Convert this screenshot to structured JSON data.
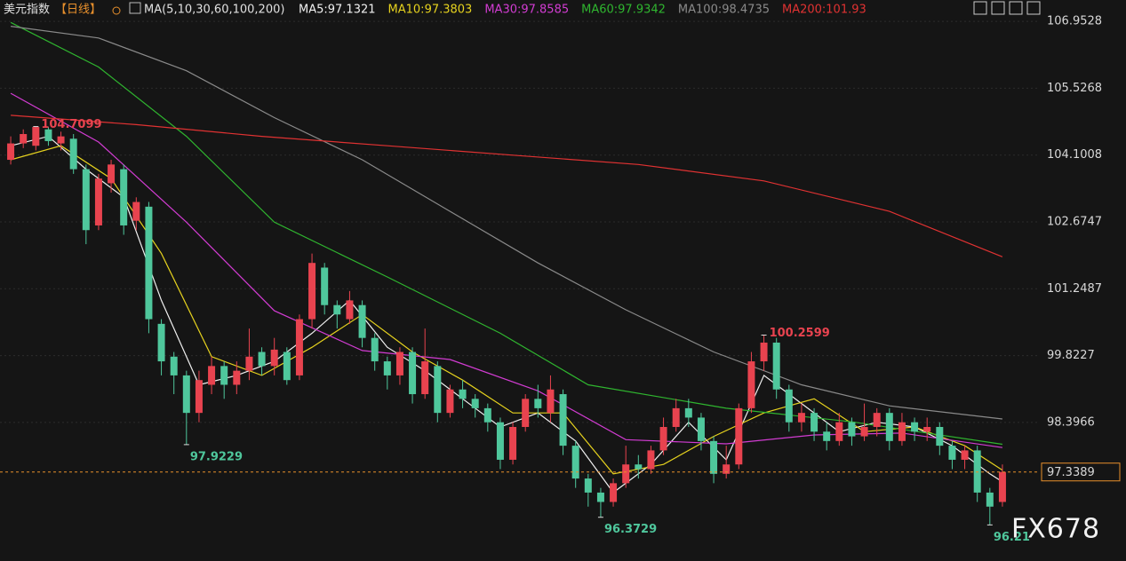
{
  "chart_data": {
    "type": "candlestick",
    "title": "美元指数",
    "period": "【日线】",
    "ma_label": "MA(5,10,30,60,100,200)",
    "watermark": "FX678",
    "ylim": [
      95.44,
      107.41
    ],
    "yticks": [
      98.3966,
      99.8227,
      101.2487,
      102.6747,
      104.1008,
      105.5268,
      106.9528
    ],
    "grid": true,
    "up_color": "#e8434f",
    "down_color": "#4fc79c",
    "current_price": 97.3389,
    "current_color": "#e8902c",
    "open": [
      104.0,
      104.35,
      104.3,
      104.65,
      104.35,
      104.45,
      103.8,
      102.6,
      103.5,
      103.8,
      102.7,
      103.0,
      100.5,
      99.8,
      99.4,
      98.6,
      99.2,
      99.6,
      99.2,
      99.5,
      99.9,
      99.6,
      99.9,
      99.4,
      100.6,
      101.7,
      100.9,
      100.6,
      100.9,
      100.2,
      99.7,
      99.4,
      99.9,
      99.0,
      99.6,
      98.6,
      99.1,
      98.9,
      98.7,
      98.4,
      97.6,
      98.3,
      98.9,
      98.6,
      99.0,
      97.9,
      97.2,
      96.9,
      96.7,
      97.1,
      97.5,
      97.4,
      97.8,
      98.3,
      98.7,
      98.5,
      98.0,
      97.3,
      97.5,
      98.7,
      99.7,
      100.1,
      99.1,
      98.4,
      98.6,
      98.2,
      98.0,
      98.4,
      98.1,
      98.3,
      98.6,
      98.0,
      98.4,
      98.2,
      98.3,
      97.9,
      97.6,
      97.8,
      96.9,
      96.7
    ],
    "high": [
      104.5,
      104.65,
      104.71,
      104.7,
      104.6,
      104.55,
      103.9,
      103.7,
      104.0,
      103.9,
      103.2,
      103.1,
      100.6,
      99.9,
      99.5,
      99.5,
      99.8,
      99.7,
      99.7,
      100.4,
      100.0,
      100.2,
      100.0,
      100.7,
      102.0,
      101.8,
      101.0,
      101.2,
      101.0,
      100.3,
      99.8,
      100.0,
      100.0,
      100.4,
      99.7,
      99.2,
      99.3,
      99.0,
      98.8,
      98.5,
      98.4,
      99.0,
      99.2,
      99.4,
      99.1,
      98.0,
      97.3,
      97.0,
      97.2,
      97.9,
      97.7,
      97.9,
      98.5,
      98.9,
      98.9,
      98.6,
      98.1,
      97.9,
      98.8,
      99.9,
      100.26,
      100.2,
      99.2,
      98.8,
      98.7,
      98.4,
      98.6,
      98.5,
      98.8,
      98.7,
      98.7,
      98.6,
      98.5,
      98.5,
      98.4,
      98.0,
      97.9,
      97.9,
      97.0,
      97.5
    ],
    "low": [
      103.9,
      104.25,
      104.2,
      104.3,
      104.2,
      103.7,
      102.2,
      102.5,
      103.3,
      102.4,
      102.5,
      100.3,
      99.4,
      99.0,
      97.92,
      98.4,
      99.0,
      98.9,
      99.0,
      99.3,
      99.4,
      99.4,
      99.2,
      99.3,
      100.4,
      100.7,
      100.4,
      100.5,
      100.0,
      99.5,
      99.1,
      99.2,
      98.8,
      98.9,
      98.4,
      98.5,
      98.7,
      98.5,
      98.2,
      97.4,
      97.5,
      98.2,
      98.5,
      98.4,
      97.7,
      97.0,
      96.6,
      96.37,
      96.6,
      97.0,
      97.2,
      97.3,
      97.7,
      98.2,
      98.3,
      97.8,
      97.1,
      97.2,
      97.4,
      98.6,
      99.5,
      98.9,
      98.2,
      98.2,
      98.0,
      97.8,
      97.9,
      97.9,
      98.0,
      98.1,
      97.8,
      97.9,
      98.0,
      98.0,
      97.7,
      97.4,
      97.4,
      96.7,
      96.21,
      96.6
    ],
    "close": [
      104.35,
      104.55,
      104.7,
      104.4,
      104.5,
      103.8,
      102.5,
      103.6,
      103.9,
      102.6,
      103.1,
      100.6,
      99.7,
      99.4,
      98.6,
      99.3,
      99.6,
      99.2,
      99.5,
      99.8,
      99.6,
      99.95,
      99.3,
      100.6,
      101.8,
      100.9,
      100.7,
      101.0,
      100.2,
      99.7,
      99.4,
      99.9,
      99.0,
      99.7,
      98.6,
      99.1,
      98.9,
      98.7,
      98.4,
      97.6,
      98.3,
      98.9,
      98.7,
      99.1,
      97.9,
      97.2,
      96.9,
      96.7,
      97.1,
      97.5,
      97.4,
      97.8,
      98.3,
      98.7,
      98.5,
      98.0,
      97.3,
      97.5,
      98.7,
      99.7,
      100.1,
      99.1,
      98.4,
      98.6,
      98.2,
      98.0,
      98.4,
      98.1,
      98.3,
      98.6,
      98.0,
      98.4,
      98.2,
      98.3,
      97.9,
      97.6,
      97.8,
      96.9,
      96.6,
      97.34
    ],
    "series": [
      {
        "name": "MA5:97.1321",
        "color": "#f0f0f0",
        "x": [
          0,
          3,
          6,
          9,
          12,
          15,
          18,
          21,
          24,
          27,
          30,
          33,
          36,
          39,
          42,
          45,
          48,
          51,
          54,
          57,
          60,
          63,
          66,
          69,
          72,
          75,
          78,
          79
        ],
        "values": [
          104.3,
          104.5,
          103.8,
          103.2,
          101.0,
          99.2,
          99.4,
          99.7,
          100.3,
          101.0,
          100.0,
          99.5,
          98.9,
          98.3,
          98.6,
          98.0,
          96.9,
          97.5,
          98.4,
          97.6,
          99.4,
          98.8,
          98.2,
          98.4,
          98.3,
          97.9,
          97.3,
          97.13
        ]
      },
      {
        "name": "MA10:97.3803",
        "color": "#e6d21e",
        "x": [
          0,
          4,
          8,
          12,
          16,
          20,
          24,
          28,
          32,
          36,
          40,
          44,
          48,
          52,
          56,
          60,
          64,
          68,
          72,
          76,
          79
        ],
        "values": [
          104.0,
          104.3,
          103.6,
          102.0,
          99.8,
          99.4,
          100.0,
          100.7,
          99.9,
          99.3,
          98.6,
          98.6,
          97.3,
          97.5,
          98.1,
          98.6,
          98.9,
          98.2,
          98.3,
          97.9,
          97.38
        ]
      },
      {
        "name": "MA30:97.8585",
        "color": "#d23cd2",
        "x": [
          0,
          7,
          14,
          21,
          28,
          35,
          42,
          49,
          57,
          64,
          71,
          79
        ],
        "values": [
          105.42,
          104.38,
          102.67,
          100.78,
          99.93,
          99.74,
          99.07,
          98.03,
          97.94,
          98.13,
          98.17,
          97.86
        ]
      },
      {
        "name": "MA60:97.9342",
        "color": "#2fb52f",
        "x": [
          0,
          7,
          14,
          21,
          30,
          39,
          46,
          57,
          67,
          79
        ],
        "values": [
          106.93,
          105.98,
          104.5,
          102.67,
          101.5,
          100.3,
          99.2,
          98.7,
          98.41,
          97.93
        ]
      },
      {
        "name": "MA100:98.4735",
        "color": "#8a8a8a",
        "x": [
          0,
          7,
          14,
          21,
          28,
          35,
          42,
          49,
          56,
          63,
          70,
          79
        ],
        "values": [
          106.85,
          106.6,
          105.9,
          104.9,
          104.0,
          102.9,
          101.8,
          100.8,
          99.9,
          99.2,
          98.75,
          98.47
        ]
      },
      {
        "name": "MA200:101.93",
        "color": "#e03232",
        "x": [
          0,
          10,
          20,
          30,
          40,
          50,
          60,
          70,
          79
        ],
        "values": [
          104.95,
          104.75,
          104.5,
          104.3,
          104.1,
          103.9,
          103.55,
          102.9,
          101.93
        ]
      }
    ],
    "annotations": [
      {
        "value": 104.7099,
        "x": 2
      },
      {
        "value": 97.9229,
        "x": 14
      },
      {
        "value": 96.3729,
        "x": 47
      },
      {
        "value": 100.2599,
        "x": 60
      },
      {
        "value": 96.21,
        "x": 78
      }
    ]
  }
}
